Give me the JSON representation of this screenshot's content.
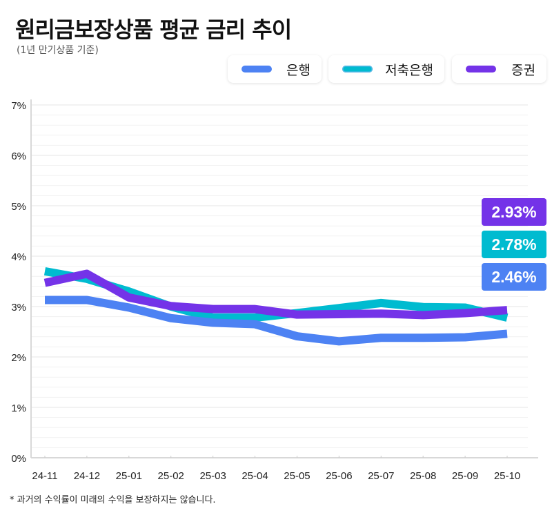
{
  "header": {
    "title": "원리금보장상품 평균 금리 추이",
    "subtitle": "(1년 만기상품 기준)"
  },
  "footnote": "* 과거의 수익률이 미래의 수익을 보장하지는 않습니다.",
  "badges": [
    {
      "label": "2.93%",
      "color": "#7433E8"
    },
    {
      "label": "2.78%",
      "color": "#00BBD0"
    },
    {
      "label": "2.46%",
      "color": "#4D82F3"
    }
  ],
  "chart_data": {
    "type": "line",
    "title": "원리금보장상품 평균 금리 추이",
    "subtitle": "(1년 만기상품 기준)",
    "xlabel": "",
    "ylabel": "",
    "ylim": [
      0,
      7
    ],
    "yticks": [
      "0%",
      "1%",
      "2%",
      "3%",
      "4%",
      "5%",
      "6%",
      "7%"
    ],
    "grid": true,
    "legend_position": "top-right",
    "categories": [
      "24-11",
      "24-12",
      "25-01",
      "25-02",
      "25-03",
      "25-04",
      "25-05",
      "25-06",
      "25-07",
      "25-08",
      "25-09",
      "25-10"
    ],
    "series": [
      {
        "name": "은행",
        "color": "#4D82F3",
        "values": [
          3.13,
          3.13,
          2.98,
          2.77,
          2.68,
          2.65,
          2.41,
          2.31,
          2.38,
          2.38,
          2.39,
          2.46
        ]
      },
      {
        "name": "저축은행",
        "color": "#00BBD0",
        "values": [
          3.7,
          3.55,
          3.3,
          3.0,
          2.78,
          2.78,
          2.87,
          2.97,
          3.07,
          2.99,
          2.98,
          2.78
        ]
      },
      {
        "name": "증권",
        "color": "#7433E8",
        "values": [
          3.47,
          3.65,
          3.18,
          3.01,
          2.95,
          2.95,
          2.84,
          2.85,
          2.86,
          2.83,
          2.87,
          2.93
        ]
      }
    ]
  }
}
